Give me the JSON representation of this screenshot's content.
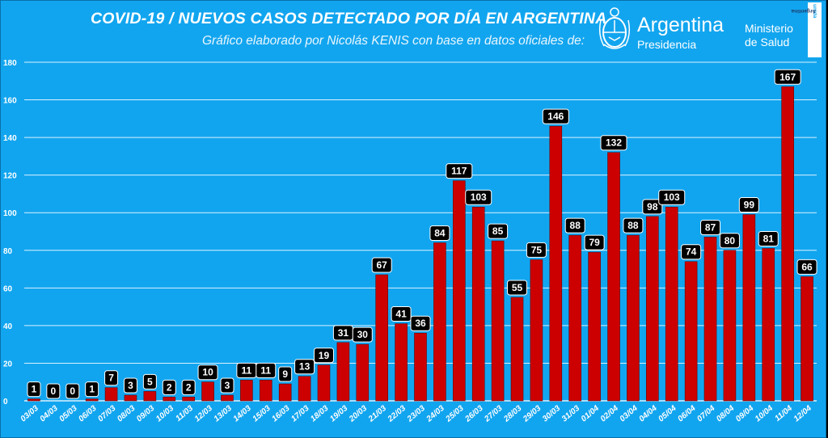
{
  "header": {
    "title": "COVID-19  /  NUEVOS CASOS DETECTADO POR DÍA EN ARGENTINA",
    "subtitle": "Gráfico elaborado por Nicolás KENIS con base en datos oficiales de:"
  },
  "logos": {
    "argentina": "Argentina",
    "presidencia": "Presidencia",
    "ministerio_line1": "Ministerio",
    "ministerio_line2": "de Salud",
    "unida_prefix": "Argentina",
    "unida_suffix": "unida"
  },
  "colors": {
    "background": "#12a5ef",
    "bar": "#cc0000",
    "label_box": "#000000",
    "label_text": "#ffffff"
  },
  "chart_data": {
    "type": "bar",
    "title": "COVID-19  /  NUEVOS CASOS DETECTADO POR DÍA EN ARGENTINA",
    "xlabel": "",
    "ylabel": "",
    "ylim": [
      0,
      180
    ],
    "yticks": [
      0,
      20,
      40,
      60,
      80,
      100,
      120,
      140,
      160,
      180
    ],
    "grid": true,
    "legend": "none",
    "categories": [
      "03/03",
      "04/03",
      "05/03",
      "06/03",
      "07/03",
      "08/03",
      "09/03",
      "10/03",
      "11/03",
      "12/03",
      "13/03",
      "14/03",
      "15/03",
      "16/03",
      "17/03",
      "18/03",
      "19/03",
      "20/03",
      "21/03",
      "22/03",
      "23/03",
      "24/03",
      "25/03",
      "26/03",
      "27/03",
      "28/03",
      "29/03",
      "30/03",
      "31/03",
      "01/04",
      "02/04",
      "03/04",
      "04/04",
      "05/04",
      "06/04",
      "07/04",
      "08/04",
      "09/04",
      "10/04",
      "11/04",
      "12/04"
    ],
    "values": [
      1,
      0,
      0,
      1,
      7,
      3,
      5,
      2,
      2,
      10,
      3,
      11,
      11,
      9,
      13,
      19,
      31,
      30,
      67,
      41,
      36,
      84,
      117,
      103,
      85,
      55,
      75,
      146,
      88,
      79,
      132,
      88,
      98,
      103,
      74,
      87,
      80,
      99,
      81,
      167,
      66
    ]
  }
}
